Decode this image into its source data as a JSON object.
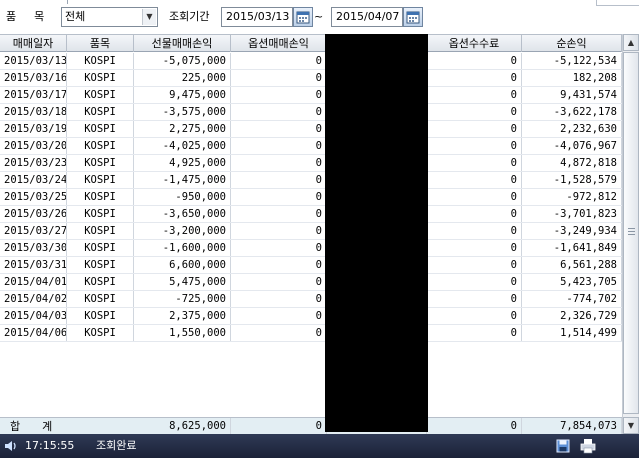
{
  "toolbar": {
    "item_label": "품목",
    "item_value": "전체",
    "period_label": "조회기간",
    "date_from": "2015/03/13",
    "date_separator": "~",
    "date_to": "2015/04/07"
  },
  "grid": {
    "columns": [
      "매매일자",
      "품목",
      "선물매매손익",
      "옵션매매손익",
      "",
      "옵션수수료",
      "순손익"
    ],
    "rows": [
      {
        "date": "2015/03/13",
        "item": "KOSPI",
        "futures_pl": "-5,075,000",
        "options_pl": "0",
        "options_fee": "0",
        "net_pl": "-5,122,534"
      },
      {
        "date": "2015/03/16",
        "item": "KOSPI",
        "futures_pl": "225,000",
        "options_pl": "0",
        "options_fee": "0",
        "net_pl": "182,208"
      },
      {
        "date": "2015/03/17",
        "item": "KOSPI",
        "futures_pl": "9,475,000",
        "options_pl": "0",
        "options_fee": "0",
        "net_pl": "9,431,574"
      },
      {
        "date": "2015/03/18",
        "item": "KOSPI",
        "futures_pl": "-3,575,000",
        "options_pl": "0",
        "options_fee": "0",
        "net_pl": "-3,622,178"
      },
      {
        "date": "2015/03/19",
        "item": "KOSPI",
        "futures_pl": "2,275,000",
        "options_pl": "0",
        "options_fee": "0",
        "net_pl": "2,232,630"
      },
      {
        "date": "2015/03/20",
        "item": "KOSPI",
        "futures_pl": "-4,025,000",
        "options_pl": "0",
        "options_fee": "0",
        "net_pl": "-4,076,967"
      },
      {
        "date": "2015/03/23",
        "item": "KOSPI",
        "futures_pl": "4,925,000",
        "options_pl": "0",
        "options_fee": "0",
        "net_pl": "4,872,818"
      },
      {
        "date": "2015/03/24",
        "item": "KOSPI",
        "futures_pl": "-1,475,000",
        "options_pl": "0",
        "options_fee": "0",
        "net_pl": "-1,528,579"
      },
      {
        "date": "2015/03/25",
        "item": "KOSPI",
        "futures_pl": "-950,000",
        "options_pl": "0",
        "options_fee": "0",
        "net_pl": "-972,812"
      },
      {
        "date": "2015/03/26",
        "item": "KOSPI",
        "futures_pl": "-3,650,000",
        "options_pl": "0",
        "options_fee": "0",
        "net_pl": "-3,701,823"
      },
      {
        "date": "2015/03/27",
        "item": "KOSPI",
        "futures_pl": "-3,200,000",
        "options_pl": "0",
        "options_fee": "0",
        "net_pl": "-3,249,934"
      },
      {
        "date": "2015/03/30",
        "item": "KOSPI",
        "futures_pl": "-1,600,000",
        "options_pl": "0",
        "options_fee": "0",
        "net_pl": "-1,641,849"
      },
      {
        "date": "2015/03/31",
        "item": "KOSPI",
        "futures_pl": "6,600,000",
        "options_pl": "0",
        "options_fee": "0",
        "net_pl": "6,561,288"
      },
      {
        "date": "2015/04/01",
        "item": "KOSPI",
        "futures_pl": "5,475,000",
        "options_pl": "0",
        "options_fee": "0",
        "net_pl": "5,423,705"
      },
      {
        "date": "2015/04/02",
        "item": "KOSPI",
        "futures_pl": "-725,000",
        "options_pl": "0",
        "options_fee": "0",
        "net_pl": "-774,702"
      },
      {
        "date": "2015/04/03",
        "item": "KOSPI",
        "futures_pl": "2,375,000",
        "options_pl": "0",
        "options_fee": "0",
        "net_pl": "2,326,729"
      },
      {
        "date": "2015/04/06",
        "item": "KOSPI",
        "futures_pl": "1,550,000",
        "options_pl": "0",
        "options_fee": "0",
        "net_pl": "1,514,499"
      }
    ],
    "total": {
      "label": "합계",
      "futures_pl": "8,625,000",
      "options_pl": "0",
      "options_fee": "0",
      "net_pl": "7,854,073"
    }
  },
  "statusbar": {
    "time": "17:15:55",
    "message": "조회완료"
  },
  "icons": {
    "dropdown": "chevron-down-icon",
    "calendar": "calendar-icon",
    "speaker": "speaker-icon",
    "save": "save-icon",
    "print": "print-icon",
    "scroll_up": "arrow-up-icon",
    "scroll_down": "arrow-down-icon"
  },
  "colors": {
    "status_bar_bg": "#1f2740",
    "header_bg": "#e6eaef",
    "total_row_bg": "#e3eef3",
    "redaction": "#000000"
  }
}
